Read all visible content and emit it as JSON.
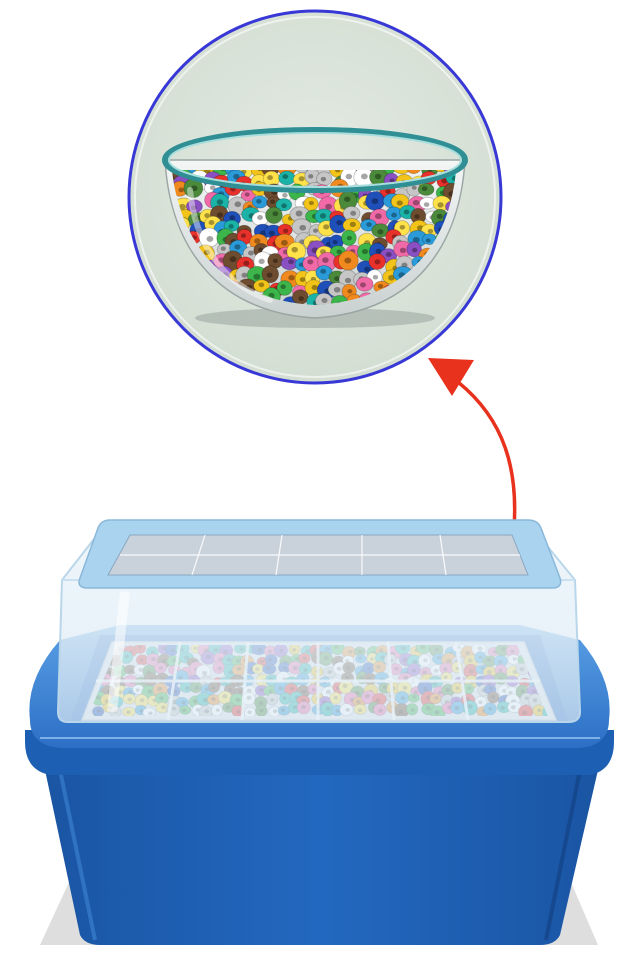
{
  "colors": {
    "background": "#ffffff",
    "circle_fill": "#d9e2d8",
    "circle_stroke": "#3838d6",
    "arrow": "#e8321e",
    "tub_main": "#1f63b8",
    "tub_dark": "#184f99",
    "tub_light": "#4b8fdc",
    "lid_frame": "#a9d3ee",
    "glass": "#e6f1f8",
    "tray": "#dfe3ea",
    "bowl_rim": "#2f8f95",
    "shadow": "#dcdcdc"
  },
  "bead_colors": [
    "#e8312b",
    "#f2c318",
    "#2a9ad8",
    "#3cb54a",
    "#f06aa8",
    "#8a4fc2",
    "#f08a1f",
    "#1bb3a8",
    "#ffffff",
    "#6d4c2f",
    "#c6c6c6",
    "#1f4fb8",
    "#ffe24a",
    "#4a8a3a"
  ],
  "icons": {
    "bowl": "glass-bowl-of-beads-icon",
    "arrow": "curved-arrow-icon",
    "container": "bead-storage-container-icon"
  }
}
